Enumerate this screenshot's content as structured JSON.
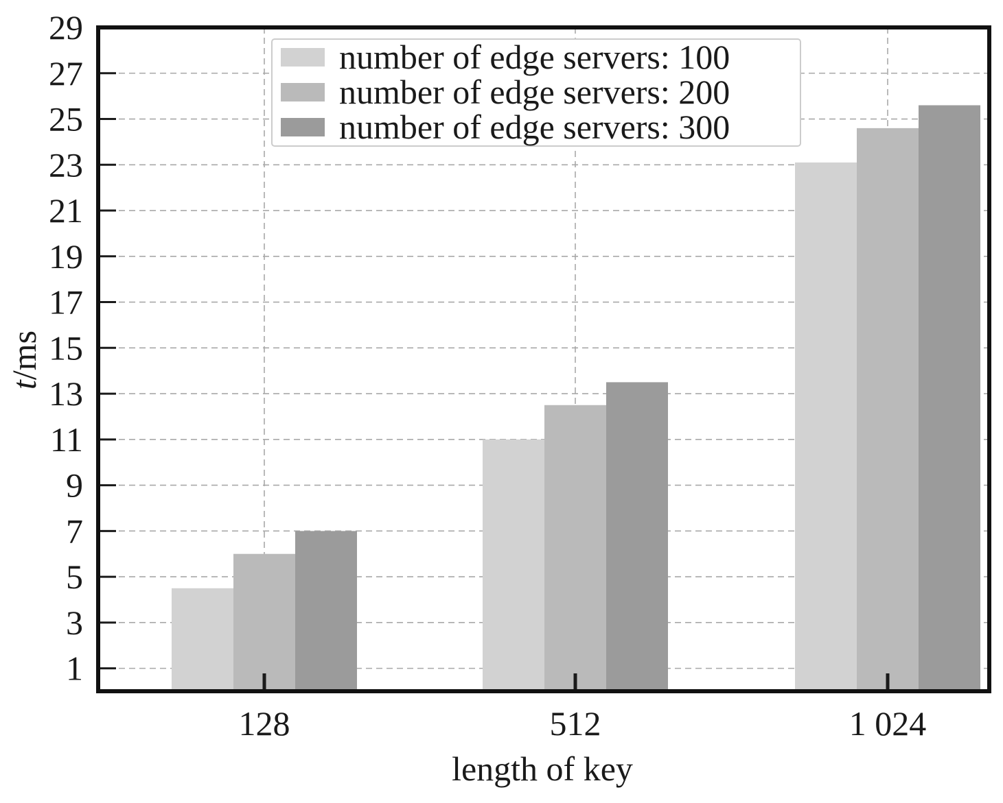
{
  "chart_data": {
    "type": "bar",
    "title": "",
    "xlabel": "length of key",
    "ylabel_italic": "t",
    "ylabel_unit": "/ms",
    "categories": [
      "128",
      "512",
      "1 024"
    ],
    "series": [
      {
        "name": "number of edge servers: 100",
        "values": [
          4.5,
          11.0,
          23.1
        ],
        "color": "#d2d2d2"
      },
      {
        "name": "number of edge servers: 200",
        "values": [
          6.0,
          12.5,
          24.6
        ],
        "color": "#bababa"
      },
      {
        "name": "number of edge servers: 300",
        "values": [
          7.0,
          13.5,
          25.6
        ],
        "color": "#9b9b9b"
      }
    ],
    "ylim": [
      0,
      29
    ],
    "yticks": [
      1,
      3,
      5,
      7,
      9,
      11,
      13,
      15,
      17,
      19,
      21,
      23,
      25,
      27,
      29
    ],
    "grid": true,
    "legend_position": "top-center"
  }
}
